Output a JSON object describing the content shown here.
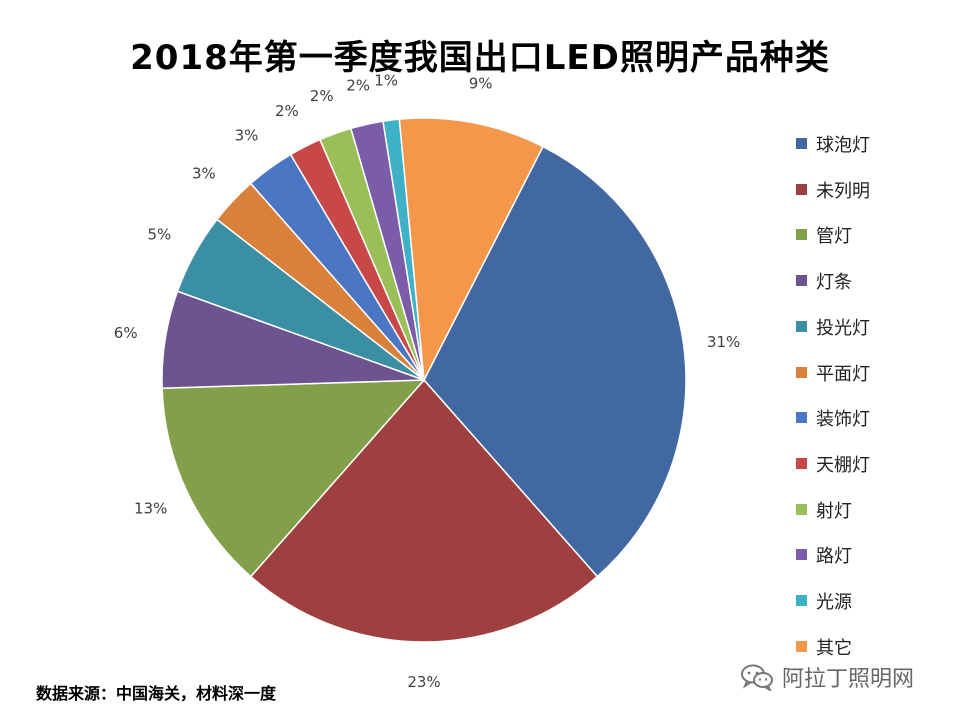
{
  "title": "2018年第一季度我国出口LED照明产品种类",
  "source": "数据来源：中国海关，材料深一度",
  "watermark": "阿拉丁照明网",
  "chart_data": {
    "type": "pie",
    "title": "2018年第一季度我国出口LED照明产品种类",
    "unit": "%",
    "start_angle_deg": 27,
    "direction": "clockwise",
    "legend_position": "right",
    "slices": [
      {
        "label": "球泡灯",
        "value": 31,
        "display": "31%",
        "color": "#4168a0"
      },
      {
        "label": "未列明",
        "value": 23,
        "display": "23%",
        "color": "#9e4040"
      },
      {
        "label": "管灯",
        "value": 13,
        "display": "13%",
        "color": "#82a04a"
      },
      {
        "label": "灯条",
        "value": 6,
        "display": "6%",
        "color": "#6d5390"
      },
      {
        "label": "投光灯",
        "value": 5,
        "display": "5%",
        "color": "#3a8fa4"
      },
      {
        "label": "平面灯",
        "value": 3,
        "display": "3%",
        "color": "#d9803a"
      },
      {
        "label": "装饰灯",
        "value": 3,
        "display": "3%",
        "color": "#4a76c4"
      },
      {
        "label": "天棚灯",
        "value": 2,
        "display": "2%",
        "color": "#c84848"
      },
      {
        "label": "射灯",
        "value": 2,
        "display": "2%",
        "color": "#9abf56"
      },
      {
        "label": "路灯",
        "value": 2,
        "display": "2%",
        "color": "#7a5ca8"
      },
      {
        "label": "光源",
        "value": 1,
        "display": "1%",
        "color": "#3fb1c6"
      },
      {
        "label": "其它",
        "value": 9,
        "display": "9%",
        "color": "#f5974a"
      }
    ]
  }
}
